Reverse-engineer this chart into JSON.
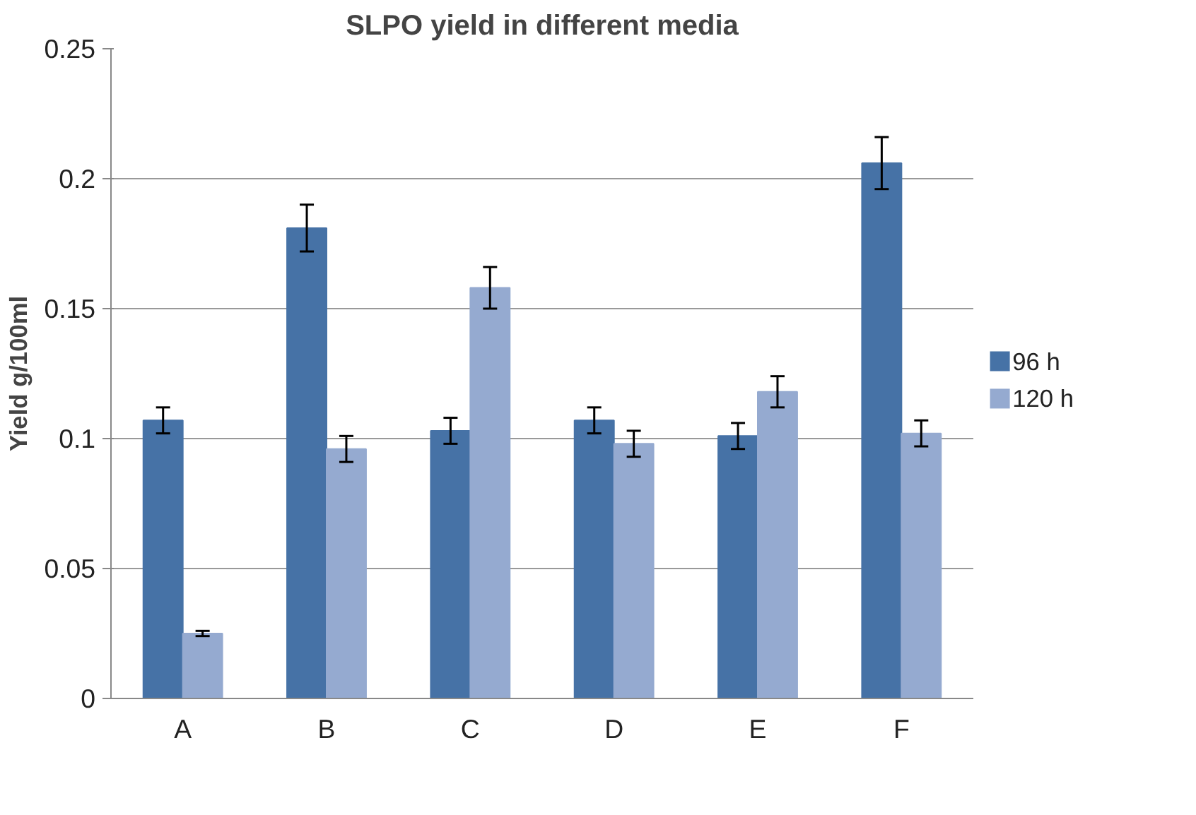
{
  "chart_data": {
    "type": "bar",
    "title": "SLPO yield in different media",
    "ylabel": "Yield g/100ml",
    "categories": [
      "A",
      "B",
      "C",
      "D",
      "E",
      "F"
    ],
    "series": [
      {
        "name": "96 h",
        "color": "#4672a6",
        "values": [
          0.107,
          0.181,
          0.103,
          0.107,
          0.101,
          0.206
        ],
        "errors": [
          0.005,
          0.009,
          0.005,
          0.005,
          0.005,
          0.01
        ]
      },
      {
        "name": "120 h",
        "color": "#95aad0",
        "values": [
          0.025,
          0.096,
          0.158,
          0.098,
          0.118,
          0.102
        ],
        "errors": [
          0.001,
          0.005,
          0.008,
          0.005,
          0.006,
          0.005
        ]
      }
    ],
    "ylim": [
      0,
      0.25
    ],
    "yticks": [
      0,
      0.05,
      0.1,
      {
        "value": 0.15,
        "label": "0.15"
      },
      0.2,
      0.25
    ],
    "grid": "y",
    "legend": "right"
  }
}
